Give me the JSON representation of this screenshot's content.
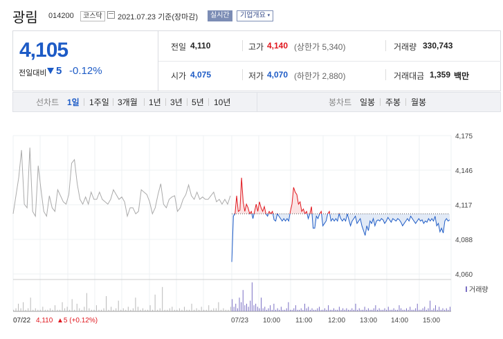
{
  "header": {
    "name": "광림",
    "code": "014200",
    "market": "코스닥",
    "date": "2021.07.23 기준(장마감)",
    "realtime_label": "실시간",
    "company_label": "기업개요",
    "company_caret": "▾"
  },
  "price": {
    "current": "4,105",
    "compare_label": "전일대비",
    "change": "5",
    "change_rate": "-0.12%"
  },
  "stats": {
    "prev_label": "전일",
    "prev": "4,110",
    "high_label": "고가",
    "high": "4,140",
    "upper_limit": "(상한가 5,340)",
    "volume_label": "거래량",
    "volume": "330,743",
    "open_label": "시가",
    "open": "4,075",
    "low_label": "저가",
    "low": "4,070",
    "lower_limit": "(하한가 2,880)",
    "amount_label": "거래대금",
    "amount": "1,359",
    "amount_unit": "백만"
  },
  "tabs": {
    "line_label": "선차트",
    "periods": [
      "1일",
      "1주일",
      "3개월",
      "1년",
      "3년",
      "5년",
      "10년"
    ],
    "active": "1일",
    "candle_label": "봉차트",
    "candles": [
      "일봉",
      "주봉",
      "월봉"
    ]
  },
  "colors": {
    "up": "#e0161d",
    "down": "#1d5bc6",
    "prev": "#aaaaaa",
    "prev_vol": "#b8b8b8",
    "vol": "#7a6fc4"
  },
  "chart_data": {
    "type": "line",
    "ylim": [
      4060,
      4175
    ],
    "yticks": [
      "4,175",
      "4,146",
      "4,117",
      "4,088",
      "4,060"
    ],
    "xticks": [
      "07/22",
      "07/23",
      "10:00",
      "11:00",
      "12:00",
      "13:00",
      "14:00",
      "15:00"
    ],
    "base": 4110,
    "volume_legend": "거래량",
    "footer_date": "07/22",
    "footer_price": "4,110",
    "footer_change": "▲5 (+0.12%)",
    "prev_day_series": [
      4110,
      4125,
      4140,
      4163,
      4118,
      4115,
      4165,
      4112,
      4108,
      4150,
      4130,
      4112,
      4108,
      4125,
      4115,
      4112,
      4130,
      4125,
      4120,
      4118,
      4126,
      4152,
      4155,
      4135,
      4122,
      4118,
      4124,
      4118,
      4128,
      4122,
      4122,
      4128,
      4122,
      4120,
      4118,
      4122,
      4130,
      4126,
      4122,
      4124,
      4120,
      4108,
      4115,
      4115,
      4110,
      4112,
      4130,
      4128,
      4126,
      4120,
      4110,
      4115,
      4126,
      4135,
      4118,
      4115,
      4122,
      4124,
      4125,
      4112,
      4115,
      4122,
      4126,
      4134,
      4125,
      4122,
      4128,
      4122,
      4124,
      4122,
      4122,
      4125,
      4128,
      4120,
      4122,
      4118,
      4122,
      4118,
      4125
    ],
    "today_series": [
      4070,
      4108,
      4110,
      4125,
      4112,
      4113,
      4140,
      4120,
      4112,
      4118,
      4115,
      4110,
      4112,
      4106,
      4112,
      4118,
      4112,
      4120,
      4115,
      4112,
      4116,
      4110,
      4108,
      4112,
      4110,
      4112,
      4105,
      4104,
      4110,
      4108,
      4106,
      4104,
      4106,
      4104,
      4106,
      4104,
      4112,
      4118,
      4132,
      4128,
      4126,
      4118,
      4120,
      4112,
      4114,
      4110,
      4112,
      4106,
      4110,
      4116,
      4098,
      4098,
      4108,
      4106,
      4110,
      4112,
      4100,
      4102,
      4104,
      4110,
      4112,
      4104,
      4106,
      4104,
      4106,
      4104,
      4110,
      4106,
      4104,
      4106,
      4104,
      4110,
      4105,
      4100,
      4104,
      4106,
      4108,
      4102,
      4104,
      4106,
      4100,
      4096,
      4092,
      4100,
      4096,
      4104,
      4102,
      4106,
      4100,
      4104,
      4105,
      4104,
      4106,
      4105,
      4102,
      4104,
      4107,
      4105,
      4103,
      4106,
      4105,
      4104,
      4106,
      4105,
      4103,
      4100,
      4102,
      4104,
      4106,
      4104,
      4108,
      4106,
      4104,
      4102,
      4104,
      4106,
      4104,
      4105,
      4102,
      4104,
      4103,
      4106,
      4104,
      4106,
      4104,
      4108,
      4100,
      4102,
      4095,
      4098,
      4094,
      4104,
      4106,
      4104,
      4105
    ],
    "prev_day_volume": [
      1,
      2,
      5,
      2,
      6,
      1,
      2,
      9,
      1,
      2,
      1,
      1,
      3,
      1,
      1,
      2,
      1,
      4,
      1,
      1,
      6,
      2,
      3,
      1,
      8,
      1,
      5,
      2,
      1,
      3,
      12,
      2,
      1,
      1,
      4,
      1,
      1,
      2,
      10,
      1,
      3,
      1,
      2,
      7,
      1,
      2,
      1,
      3,
      1,
      2,
      9,
      3,
      1,
      2,
      1,
      1,
      4,
      1,
      11,
      1,
      2,
      16,
      1,
      1,
      2,
      3,
      1,
      1,
      2,
      1,
      3,
      1,
      1,
      5,
      1,
      2,
      1,
      3,
      1,
      1,
      4,
      1,
      2,
      2,
      6,
      1,
      2,
      1,
      1,
      3
    ],
    "today_volume": [
      8,
      3,
      5,
      2,
      9,
      6,
      14,
      4,
      5,
      3,
      7,
      19,
      4,
      5,
      3,
      2,
      9,
      2,
      3,
      1,
      2,
      4,
      1,
      5,
      1,
      2,
      1,
      3,
      1,
      1,
      2,
      6,
      1,
      1,
      2,
      4,
      1,
      1,
      2,
      1,
      5,
      2,
      3,
      1,
      2,
      1,
      1,
      2,
      3,
      1,
      1,
      2,
      1,
      4,
      1,
      1,
      2,
      1,
      1,
      3,
      1,
      2,
      1,
      2,
      1,
      1,
      2,
      1,
      5,
      1,
      2,
      1,
      1,
      3,
      1,
      2,
      1,
      1,
      2,
      4,
      1,
      2,
      1,
      1,
      2,
      1,
      3,
      1,
      1,
      2,
      1,
      1,
      4,
      2,
      1,
      1,
      2,
      1,
      3,
      1,
      1,
      2,
      5,
      1,
      1,
      2,
      3,
      1,
      2,
      7,
      1,
      2,
      4,
      1,
      3,
      1,
      2,
      1,
      2,
      1,
      3
    ]
  }
}
